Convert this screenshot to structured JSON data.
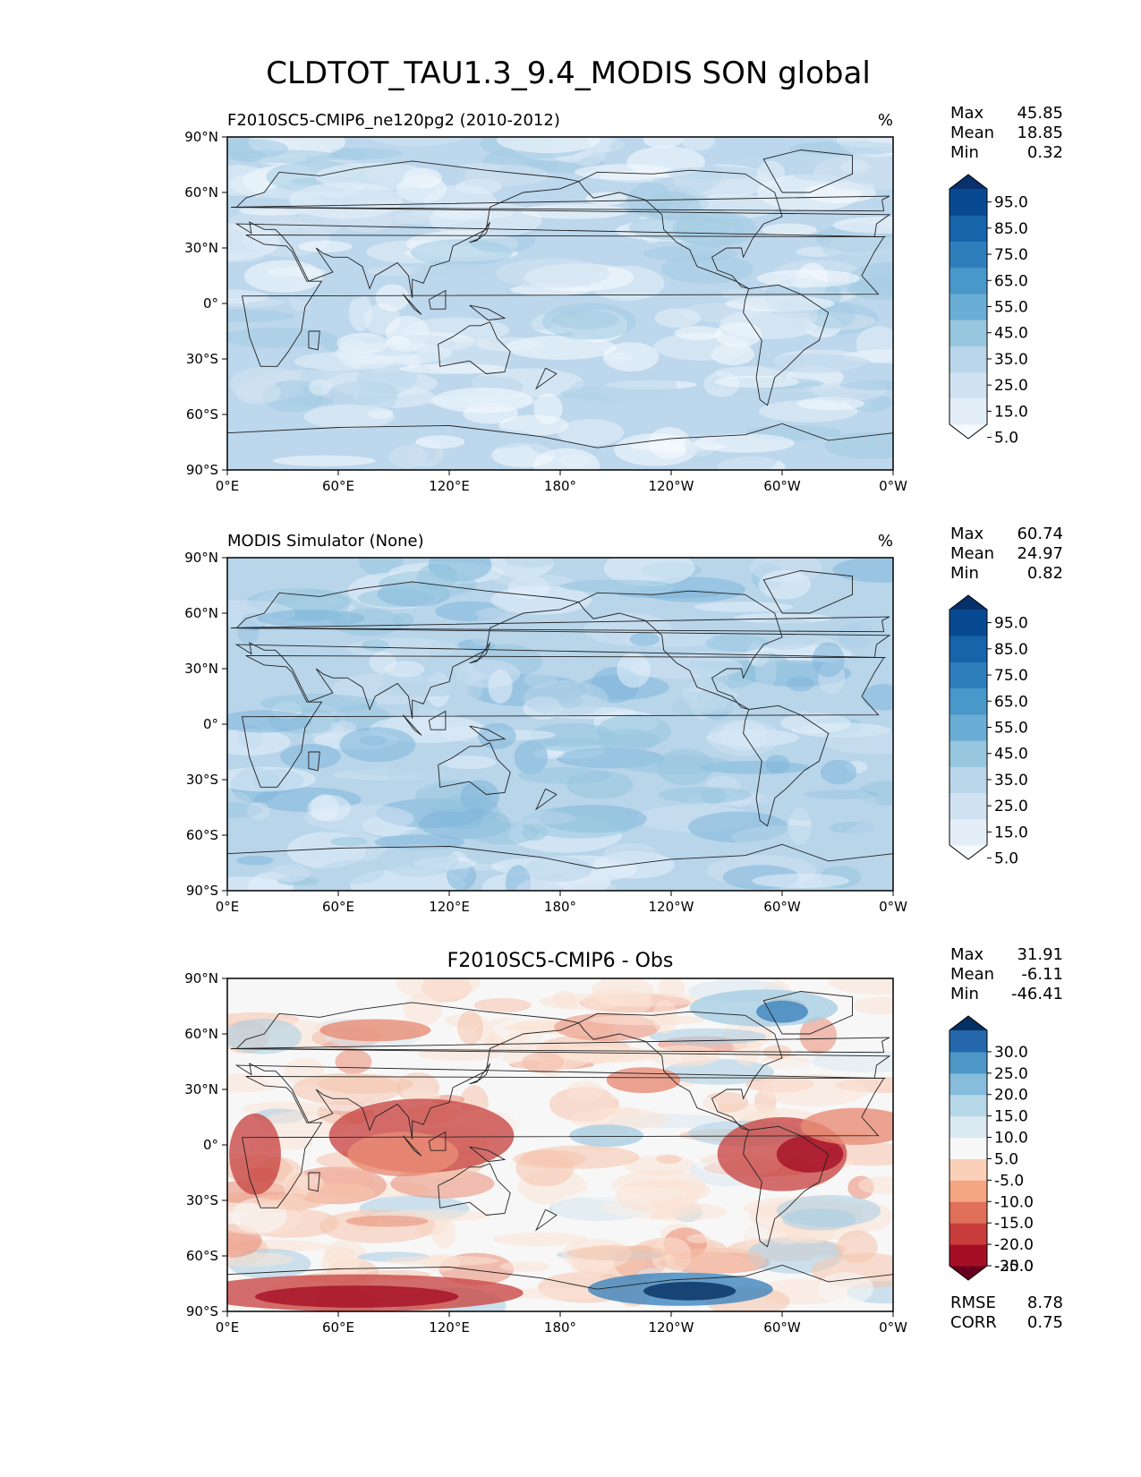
{
  "title": "CLDTOT_TAU1.3_9.4_MODIS SON global",
  "lon_ticks": [
    "0°E",
    "60°E",
    "120°E",
    "180°",
    "120°W",
    "60°W",
    "0°W"
  ],
  "lat_ticks": [
    "90°N",
    "60°N",
    "30°N",
    "0°",
    "30°S",
    "60°S",
    "90°S"
  ],
  "panels": [
    {
      "left_title": "F2010SC5-CMIP6_ne120pg2 (2010-2012)",
      "center_title": "",
      "units": "%",
      "stats": [
        {
          "label": "Max",
          "value": "45.85"
        },
        {
          "label": "Mean",
          "value": "18.85"
        },
        {
          "label": "Min",
          "value": "0.32"
        }
      ],
      "colorbar": {
        "labels": [
          "95.0",
          "85.0",
          "75.0",
          "65.0",
          "55.0",
          "45.0",
          "35.0",
          "25.0",
          "15.0",
          "5.0"
        ],
        "colors": [
          "#f7fbff",
          "#e3eef9",
          "#d0e2f2",
          "#b8d5ea",
          "#97c6df",
          "#6aaed6",
          "#4a98c9",
          "#2e7ebc",
          "#1764ab",
          "#084a91",
          "#08306b"
        ]
      },
      "map_palette": [
        "#f7fbff",
        "#e6f0fa",
        "#d3e4f3",
        "#bcd7eb",
        "#a4cce3"
      ],
      "map_base": "#bdd7ec"
    },
    {
      "left_title": "MODIS Simulator (None)",
      "center_title": "",
      "units": "%",
      "stats": [
        {
          "label": "Max",
          "value": "60.74"
        },
        {
          "label": "Mean",
          "value": "24.97"
        },
        {
          "label": "Min",
          "value": "0.82"
        }
      ],
      "colorbar": {
        "labels": [
          "95.0",
          "85.0",
          "75.0",
          "65.0",
          "55.0",
          "45.0",
          "35.0",
          "25.0",
          "15.0",
          "5.0"
        ],
        "colors": [
          "#f7fbff",
          "#e3eef9",
          "#d0e2f2",
          "#b8d5ea",
          "#97c6df",
          "#6aaed6",
          "#4a98c9",
          "#2e7ebc",
          "#1764ab",
          "#084a91",
          "#08306b"
        ]
      },
      "map_palette": [
        "#e6f0fa",
        "#d0e2f2",
        "#b8d5ea",
        "#97c6df",
        "#7fb7da"
      ],
      "map_base": "#b8d5ea"
    },
    {
      "left_title": "",
      "center_title": "F2010SC5-CMIP6 - Obs",
      "units": "",
      "stats": [
        {
          "label": "Max",
          "value": "31.91"
        },
        {
          "label": "Mean",
          "value": "-6.11"
        },
        {
          "label": "Min",
          "value": "-46.41"
        }
      ],
      "metrics": [
        {
          "label": "RMSE",
          "value": "8.78"
        },
        {
          "label": "CORR",
          "value": "0.75"
        }
      ],
      "colorbar": {
        "labels": [
          "30.0",
          "25.0",
          "20.0",
          "15.0",
          "10.0",
          "5.0",
          "-5.0",
          "-10.0",
          "-15.0",
          "-20.0",
          "-25.0",
          "-30.0"
        ],
        "colors": [
          "#67001f",
          "#a50f26",
          "#c83c3c",
          "#e0705a",
          "#f4a582",
          "#fbd0b9",
          "#f7f7f7",
          "#dbeaf2",
          "#b6d7e8",
          "#86bcdc",
          "#4c97c6",
          "#2468ab",
          "#053061"
        ]
      },
      "map_palette": [
        "#f7f7f7",
        "#fbe3d6",
        "#f6c4ad",
        "#e98c75",
        "#c94a47",
        "#dbeaf2",
        "#a8cee4",
        "#3d85bd"
      ],
      "map_base": "#f7f7f7"
    }
  ]
}
